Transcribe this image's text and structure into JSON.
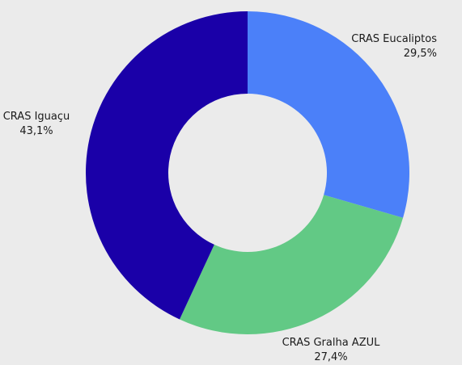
{
  "chart_data": {
    "type": "donut",
    "categories": [
      "CRAS Eucaliptos",
      "CRAS Gralha AZUL",
      "CRAS Iguaçu"
    ],
    "values": [
      29.5,
      27.4,
      43.1
    ],
    "value_labels": [
      "29,5%",
      "27,4%",
      "43,1%"
    ],
    "colors": [
      "#4b80f9",
      "#62c985",
      "#1a00a8"
    ]
  }
}
